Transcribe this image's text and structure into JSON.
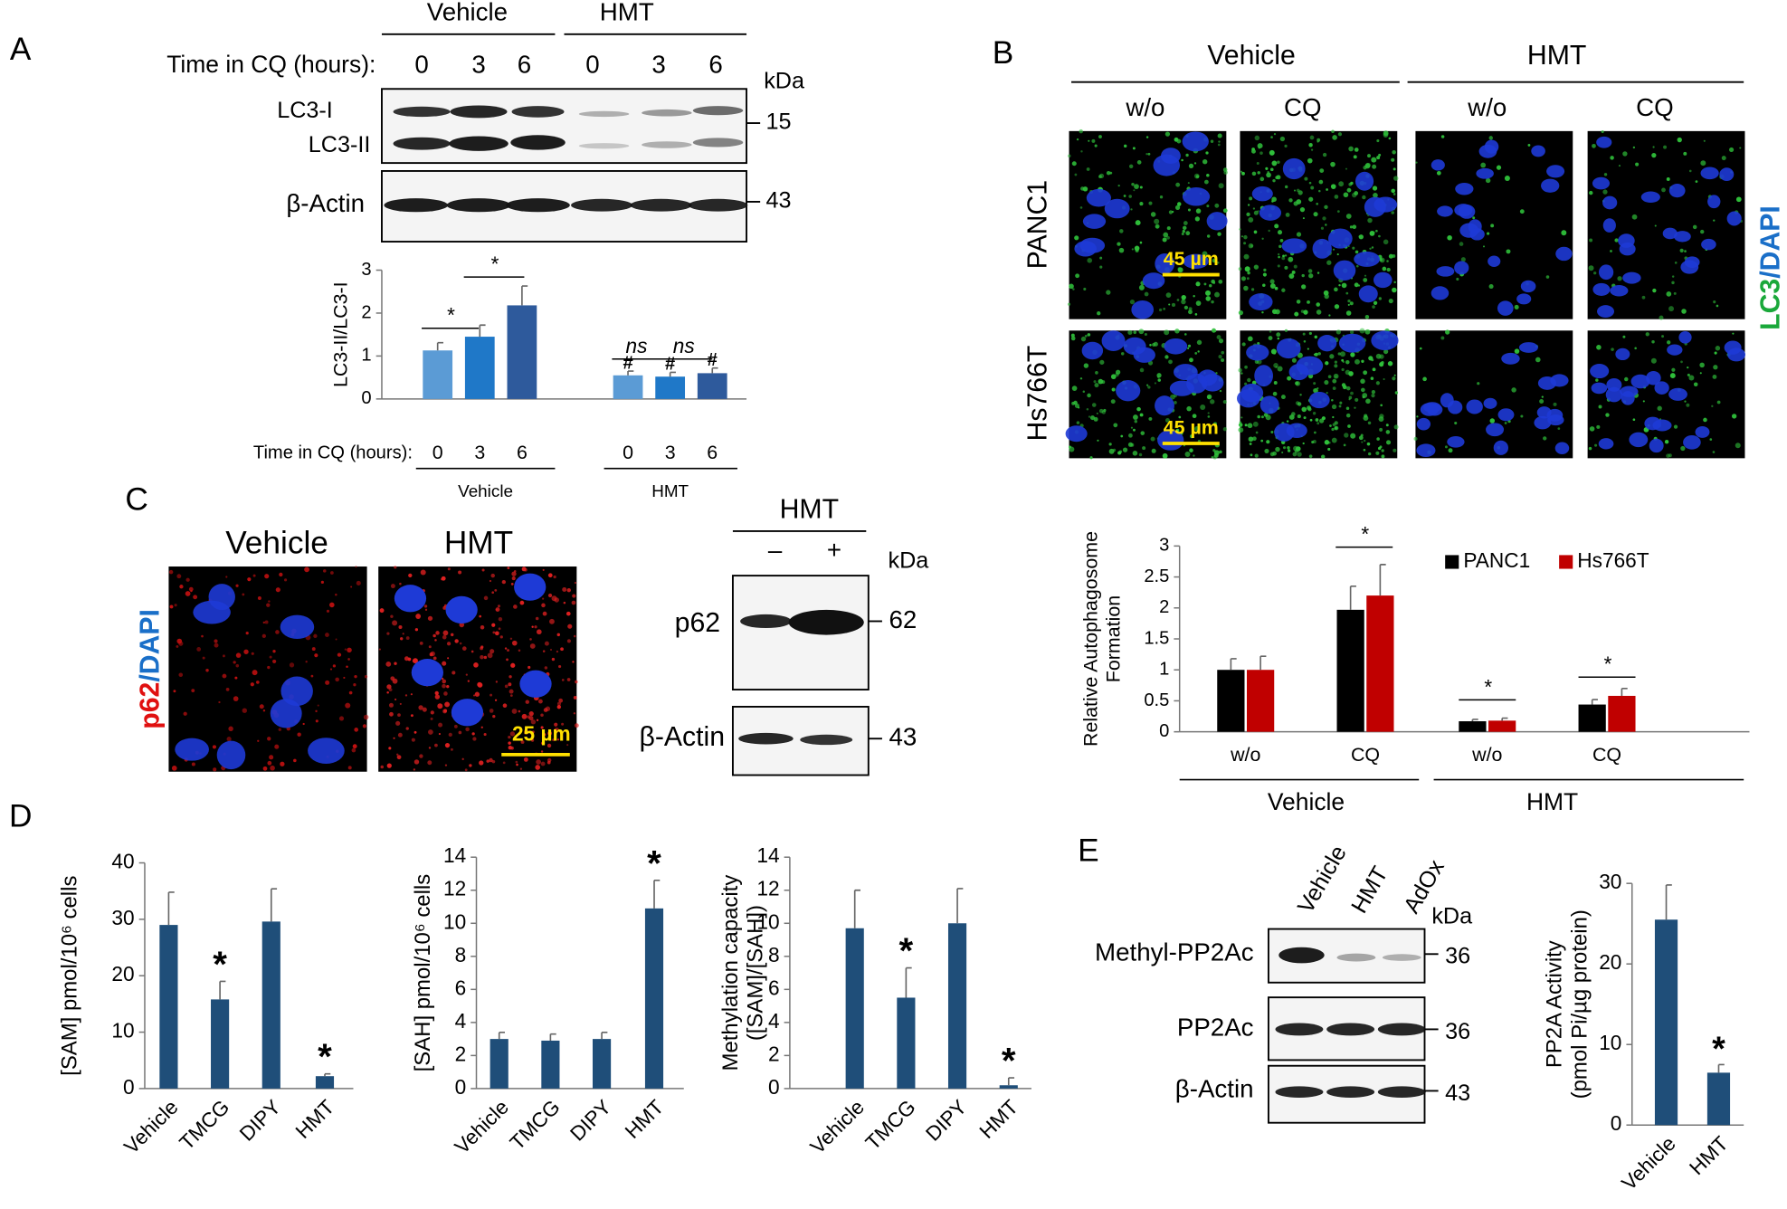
{
  "panels": {
    "A": {
      "label": "A",
      "groups": [
        "Vehicle",
        "HMT"
      ],
      "time_label": "Time in CQ (hours):",
      "times": [
        "0",
        "3",
        "6",
        "0",
        "3",
        "6"
      ],
      "kda": "kDa",
      "bands": [
        "LC3-I",
        "LC3-II",
        "β-Actin"
      ],
      "markers": [
        "15",
        "43"
      ]
    },
    "B": {
      "label": "B",
      "groups": [
        "Vehicle",
        "HMT"
      ],
      "conditions": [
        "w/o",
        "CQ",
        "w/o",
        "CQ"
      ],
      "cell_lines": [
        "PANC1",
        "Hs766T"
      ],
      "scale_bars": [
        "45 µm",
        "45 µm"
      ],
      "stain": [
        "LC3",
        "/DAPI"
      ]
    },
    "C": {
      "label": "C",
      "image_titles": [
        "Vehicle",
        "HMT"
      ],
      "stain": [
        "p62",
        "/DAPI"
      ],
      "scale_bar": "25 µm",
      "blot_title": "HMT",
      "lanes": [
        "–",
        "+"
      ],
      "kda": "kDa",
      "bands": [
        "p62",
        "β-Actin"
      ],
      "markers": [
        "62",
        "43"
      ]
    },
    "D": {
      "label": "D"
    },
    "E": {
      "label": "E",
      "lanes": [
        "Vehicle",
        "HMT",
        "AdOx"
      ],
      "kda": "kDa",
      "bands": [
        "Methyl-PP2Ac",
        "PP2Ac",
        "β-Actin"
      ],
      "markers": [
        "36",
        "36",
        "43"
      ]
    }
  },
  "chart_data": [
    {
      "type": "bar",
      "ylabel": "LC3-II/LC3-I",
      "x_label": "Time in CQ (hours):",
      "categories": [
        "0",
        "3",
        "6",
        "0",
        "3",
        "6"
      ],
      "groups": [
        "Vehicle",
        "HMT"
      ],
      "series": [
        {
          "values": [
            1.13,
            1.45,
            2.18,
            0.55,
            0.52,
            0.6
          ],
          "errors": [
            0.18,
            0.27,
            0.45,
            0.1,
            0.1,
            0.12
          ],
          "colors": [
            "#5b9bd5",
            "#1f78c8",
            "#2e5a9c",
            "#5b9bd5",
            "#1f78c8",
            "#2e5a9c"
          ]
        }
      ],
      "annotations": [
        null,
        null,
        null,
        "#",
        "#",
        "#"
      ],
      "brackets": [
        "*",
        "*",
        "ns",
        "ns"
      ],
      "ylim": [
        0,
        3
      ],
      "yticks": [
        0,
        1,
        2,
        3
      ]
    },
    {
      "type": "bar",
      "ylabel": [
        "Relative Autophagosome",
        "Formation"
      ],
      "categories": [
        "w/o",
        "CQ",
        "w/o",
        "CQ"
      ],
      "groups": [
        "Vehicle",
        "HMT"
      ],
      "series": [
        {
          "name": "PANC1",
          "color": "#000000",
          "values": [
            1.0,
            1.97,
            0.17,
            0.44
          ],
          "errors": [
            0.18,
            0.38,
            0.03,
            0.08
          ]
        },
        {
          "name": "Hs766T",
          "color": "#c00000",
          "values": [
            1.0,
            2.2,
            0.18,
            0.58
          ],
          "errors": [
            0.22,
            0.5,
            0.04,
            0.12
          ]
        }
      ],
      "brackets": [
        "*",
        "*",
        "*"
      ],
      "legend": "top-right",
      "ylim": [
        0,
        3
      ],
      "yticks": [
        0,
        0.5,
        1,
        1.5,
        2,
        2.5,
        3
      ]
    },
    {
      "type": "bar",
      "ylabel": "[SAM] pmol/10⁶ cells",
      "categories": [
        "Vehicle",
        "TMCG",
        "DIPY",
        "HMT"
      ],
      "series": [
        {
          "color": "#1f4e79",
          "values": [
            29,
            15.8,
            29.6,
            2.2
          ],
          "errors": [
            5.8,
            3.2,
            5.8,
            0.4
          ]
        }
      ],
      "annotations": [
        null,
        "*",
        null,
        "*"
      ],
      "ylim": [
        0,
        40
      ],
      "yticks": [
        0,
        10,
        20,
        30,
        40
      ]
    },
    {
      "type": "bar",
      "ylabel": "[SAH] pmol/10⁶ cells",
      "categories": [
        "Vehicle",
        "TMCG",
        "DIPY",
        "HMT"
      ],
      "series": [
        {
          "color": "#1f4e79",
          "values": [
            3.0,
            2.9,
            3.0,
            10.9
          ],
          "errors": [
            0.4,
            0.4,
            0.4,
            1.7
          ]
        }
      ],
      "annotations": [
        null,
        null,
        null,
        "*"
      ],
      "ylim": [
        0,
        14
      ],
      "yticks": [
        0,
        2,
        4,
        6,
        8,
        10,
        12,
        14
      ]
    },
    {
      "type": "bar",
      "ylabel": [
        "Methylation capacity",
        "([SAM]/[SAH])"
      ],
      "categories": [
        "Vehicle",
        "TMCG",
        "DIPY",
        "HMT"
      ],
      "series": [
        {
          "color": "#1f4e79",
          "values": [
            9.7,
            5.5,
            10.0,
            0.2
          ],
          "errors": [
            2.3,
            1.8,
            2.1,
            0.45
          ]
        }
      ],
      "annotations": [
        null,
        "*",
        null,
        "*"
      ],
      "ylim": [
        0,
        14
      ],
      "yticks": [
        0,
        2,
        4,
        6,
        8,
        10,
        12,
        14
      ]
    },
    {
      "type": "bar",
      "ylabel": [
        "PP2A Activity",
        "(pmol Pi/µg protein)"
      ],
      "categories": [
        "Vehicle",
        "HMT"
      ],
      "series": [
        {
          "color": "#1f4e79",
          "values": [
            25.5,
            6.5
          ],
          "errors": [
            4.3,
            1.0
          ]
        }
      ],
      "annotations": [
        null,
        "*"
      ],
      "ylim": [
        0,
        30
      ],
      "yticks": [
        0,
        10,
        20,
        30
      ]
    }
  ]
}
